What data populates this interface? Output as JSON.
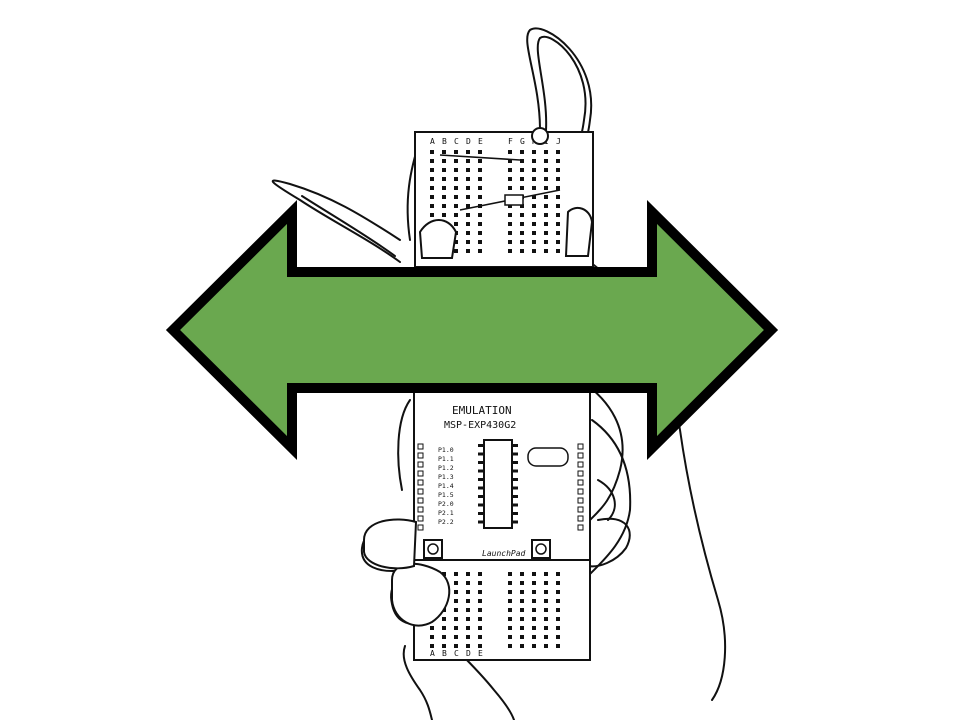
{
  "image": {
    "subject": "hand-held breadboard prototype with microcontroller launchpad (line-drawing style)",
    "arrow_icon": "double-headed-horizontal-arrow-icon",
    "arrow_color": "#6aa84f",
    "outline_color": "#000000",
    "background": "#ffffff"
  },
  "board": {
    "silkscreen_title": "EMULATION",
    "silkscreen_part": "MSP-EXP430G2",
    "pin_labels": [
      "P1.0",
      "P1.1",
      "P1.2",
      "P1.3",
      "P1.4",
      "P1.5",
      "P2.0",
      "P2.1",
      "P2.2"
    ],
    "logo_text": "LaunchPad",
    "breadboard_cols_top": [
      "A",
      "B",
      "C",
      "D",
      "E",
      "F",
      "G",
      "H",
      "I",
      "J"
    ],
    "breadboard_cols_bottom": [
      "A",
      "B",
      "C",
      "D",
      "E"
    ]
  }
}
